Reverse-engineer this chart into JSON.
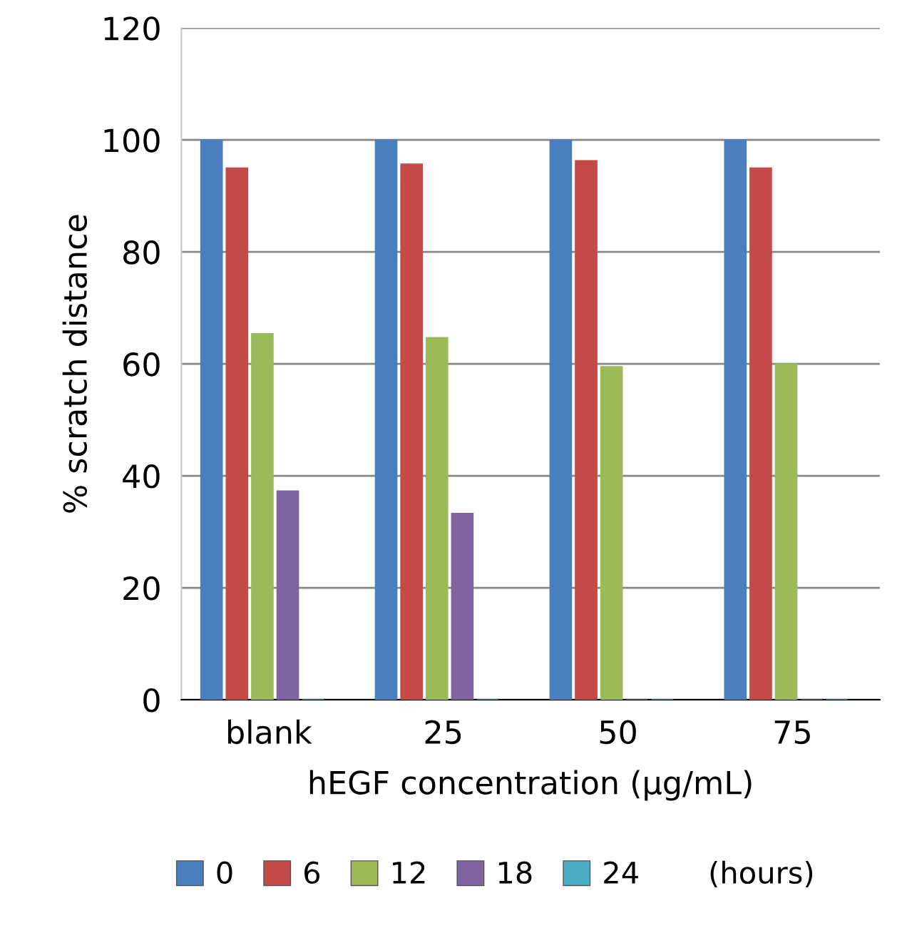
{
  "chart_data": {
    "type": "bar",
    "xlabel": "hEGF concentration (µg/mL)",
    "ylabel": "% scratch distance",
    "legend_title": "(hours)",
    "categories": [
      "blank",
      "25",
      "50",
      "75"
    ],
    "series": [
      {
        "name": "0",
        "color": "#4a7ebf",
        "values": [
          100,
          100,
          100,
          100
        ]
      },
      {
        "name": "6",
        "color": "#c44a48",
        "values": [
          95,
          95.7,
          96.3,
          95
        ]
      },
      {
        "name": "12",
        "color": "#9bbb59",
        "values": [
          65.4,
          64.7,
          59.5,
          60
        ]
      },
      {
        "name": "18",
        "color": "#8064a2",
        "values": [
          37.3,
          33.3,
          0,
          0
        ]
      },
      {
        "name": "24",
        "color": "#4bacc6",
        "values": [
          0,
          0,
          0,
          0
        ]
      }
    ],
    "ylim": [
      0,
      120
    ],
    "yticks": [
      0,
      20,
      40,
      60,
      80,
      100,
      120
    ],
    "grid": "y",
    "legend": "bottom"
  }
}
